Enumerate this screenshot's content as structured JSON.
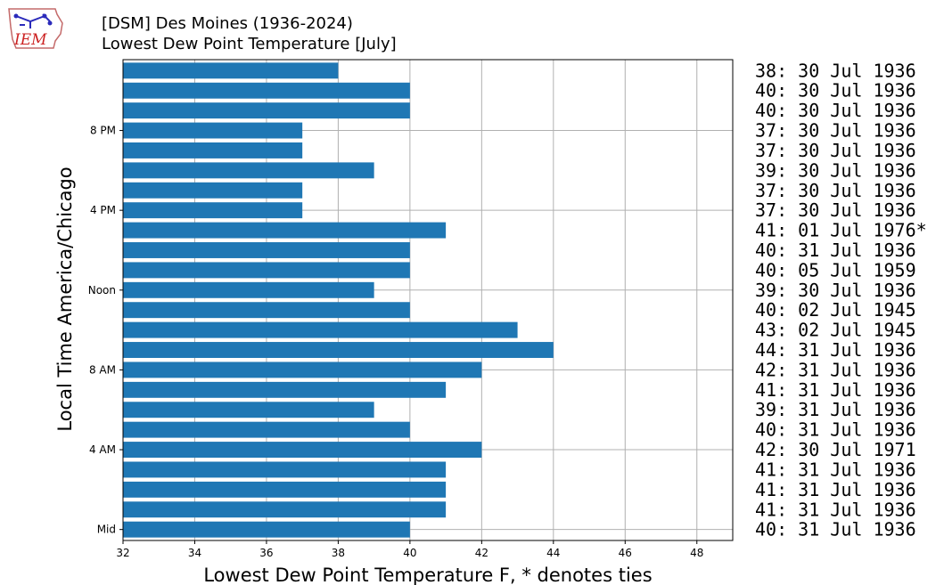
{
  "header": {
    "logo_text": "IEM",
    "title": "[DSM] Des Moines (1936-2024)",
    "subtitle": "Lowest Dew Point Temperature [July]"
  },
  "chart_data": {
    "type": "bar",
    "orientation": "horizontal",
    "xlabel": "Lowest Dew Point Temperature F, * denotes ties",
    "ylabel": "Local Time America/Chicago",
    "xlim": [
      32,
      49
    ],
    "xticks": [
      32,
      34,
      36,
      38,
      40,
      42,
      44,
      46,
      48
    ],
    "yticks": [
      {
        "hour": 0,
        "label": "Mid"
      },
      {
        "hour": 4,
        "label": "4 AM"
      },
      {
        "hour": 8,
        "label": "8 AM"
      },
      {
        "hour": 12,
        "label": "Noon"
      },
      {
        "hour": 16,
        "label": "4 PM"
      },
      {
        "hour": 20,
        "label": "8 PM"
      }
    ],
    "grid": true,
    "bar_color": "#1f77b4",
    "hours": [
      0,
      1,
      2,
      3,
      4,
      5,
      6,
      7,
      8,
      9,
      10,
      11,
      12,
      13,
      14,
      15,
      16,
      17,
      18,
      19,
      20,
      21,
      22,
      23
    ],
    "values": [
      40,
      41,
      41,
      41,
      42,
      40,
      39,
      41,
      42,
      44,
      43,
      40,
      39,
      40,
      40,
      41,
      37,
      37,
      39,
      37,
      37,
      40,
      40,
      38
    ],
    "annotations": [
      "40: 31 Jul 1936",
      "41: 31 Jul 1936",
      "41: 31 Jul 1936",
      "41: 31 Jul 1936",
      "42: 30 Jul 1971",
      "40: 31 Jul 1936",
      "39: 31 Jul 1936",
      "41: 31 Jul 1936",
      "42: 31 Jul 1936",
      "44: 31 Jul 1936",
      "43: 02 Jul 1945",
      "40: 02 Jul 1945",
      "39: 30 Jul 1936",
      "40: 05 Jul 1959",
      "40: 31 Jul 1936",
      "41: 01 Jul 1976*",
      "37: 30 Jul 1936",
      "37: 30 Jul 1936",
      "39: 30 Jul 1936",
      "37: 30 Jul 1936",
      "37: 30 Jul 1936",
      "40: 30 Jul 1936",
      "40: 30 Jul 1936",
      "38: 30 Jul 1936"
    ]
  }
}
